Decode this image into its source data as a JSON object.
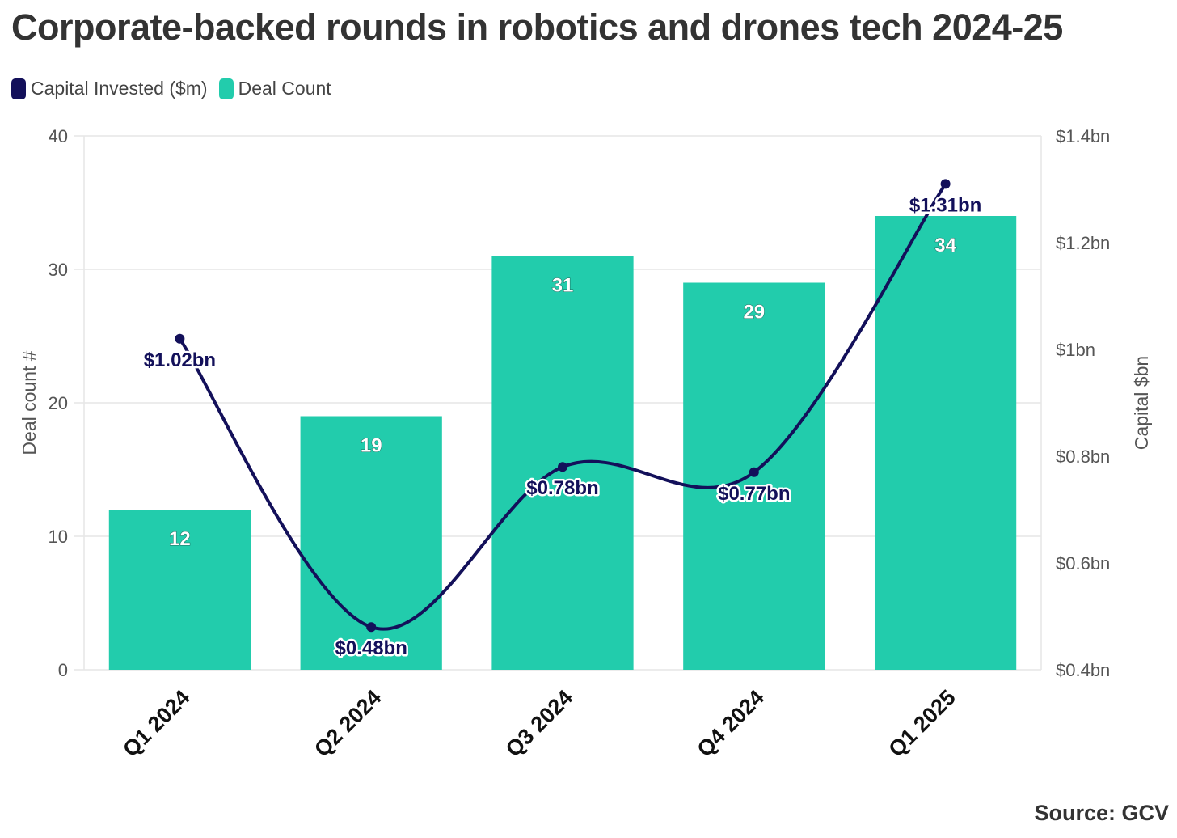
{
  "title": "Corporate-backed rounds in robotics and drones tech 2024-25",
  "source": "Source: GCV",
  "legend": {
    "line": "Capital Invested ($m)",
    "bar": "Deal Count"
  },
  "colors": {
    "line": "#13105a",
    "bar": "#22ccac",
    "grid": "#e6e6e6",
    "axis_text": "#555555"
  },
  "chart_data": {
    "type": "bar",
    "categories": [
      "Q1 2024",
      "Q2 2024",
      "Q3 2024",
      "Q4 2024",
      "Q1 2025"
    ],
    "series": [
      {
        "name": "Deal Count",
        "type": "bar",
        "axis": "left",
        "values": [
          12,
          19,
          31,
          29,
          34
        ],
        "labels": [
          "12",
          "19",
          "31",
          "29",
          "34"
        ]
      },
      {
        "name": "Capital Invested ($m)",
        "type": "line",
        "axis": "right",
        "values": [
          1.02,
          0.48,
          0.78,
          0.77,
          1.31
        ],
        "labels": [
          "$1.02bn",
          "$0.48bn",
          "$0.78bn",
          "$0.77bn",
          "$1.31bn"
        ]
      }
    ],
    "ylabel_left": "Deal count #",
    "ylabel_right": "Capital $bn",
    "ylim_left": [
      0,
      40
    ],
    "ylim_right": [
      0.4,
      1.4
    ],
    "yticks_left": [
      "0",
      "10",
      "20",
      "30",
      "40"
    ],
    "yticks_right": [
      "$0.4bn",
      "$0.6bn",
      "$0.8bn",
      "$1bn",
      "$1.2bn",
      "$1.4bn"
    ],
    "grid": true,
    "legend_position": "top-left"
  }
}
